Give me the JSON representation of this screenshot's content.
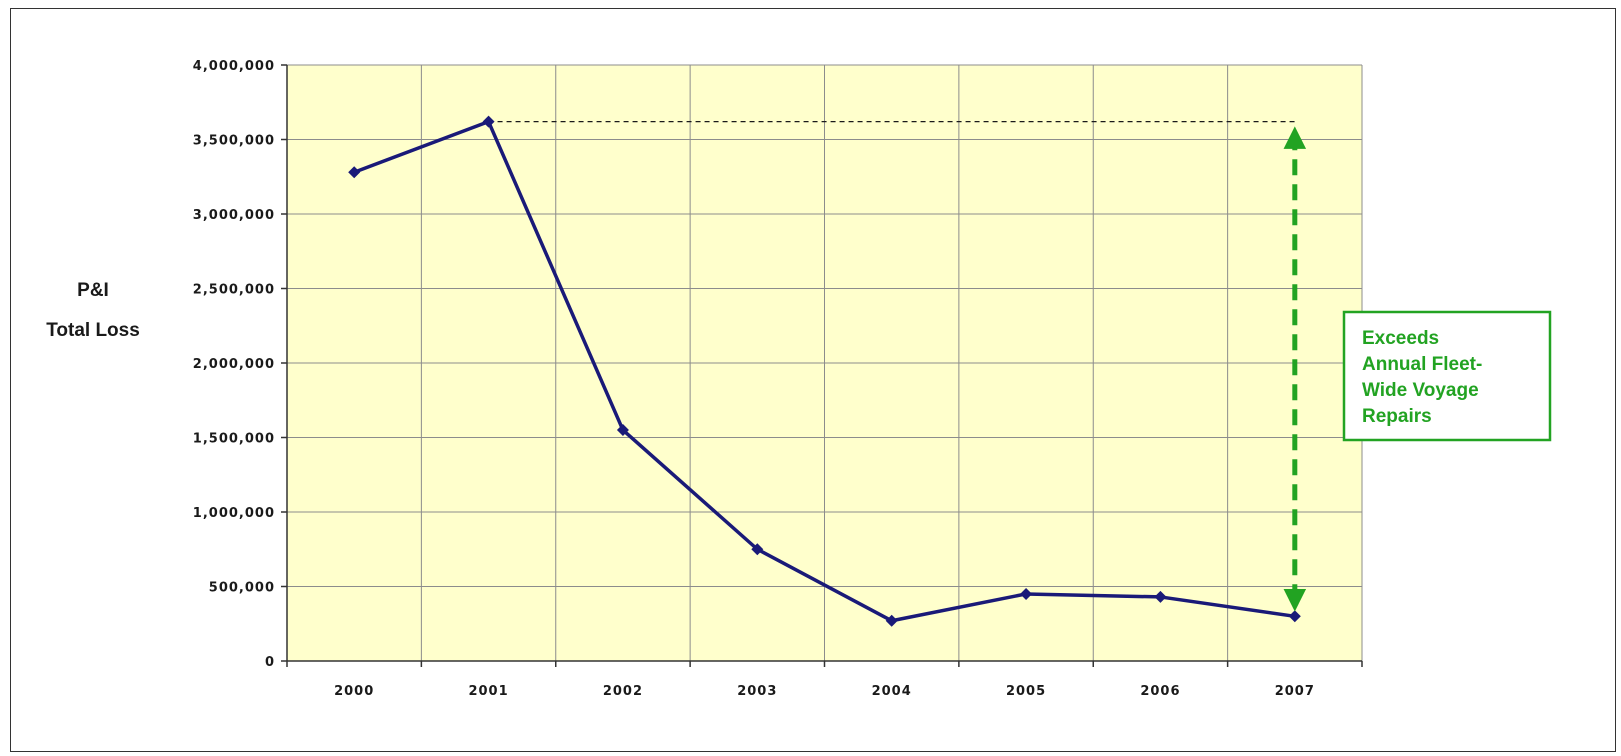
{
  "chart_data": {
    "type": "line",
    "title": "",
    "xlabel": "",
    "ylabel_lines": [
      "P&I",
      "Total Loss"
    ],
    "categories": [
      "2000",
      "2001",
      "2002",
      "2003",
      "2004",
      "2005",
      "2006",
      "2007"
    ],
    "series": [
      {
        "values": [
          3280000,
          3620000,
          1550000,
          750000,
          270000,
          450000,
          430000,
          300000
        ],
        "color": "#1a1a78"
      }
    ],
    "ylim": [
      0,
      4000000
    ],
    "ytick_labels": [
      "0",
      "500,000",
      "1,000,000",
      "1,500,000",
      "2,000,000",
      "2,500,000",
      "3,000,000",
      "3,500,000",
      "4,000,000"
    ],
    "ytick_values": [
      0,
      500000,
      1000000,
      1500000,
      2000000,
      2500000,
      3000000,
      3500000,
      4000000
    ],
    "grid": true,
    "plot_background": "#ffffcc",
    "gridline_color": "#8c8c8c",
    "reference_line": {
      "value": 3620000,
      "from_category": "2001",
      "to_category": "2007",
      "color": "#1a1a1a",
      "style": "dashed"
    },
    "range_arrow": {
      "category": "2007",
      "from_value": 300000,
      "to_value": 3620000,
      "color": "#22a322",
      "style": "dashed"
    },
    "annotation": {
      "lines": [
        "Exceeds",
        "Annual Fleet-",
        "Wide Voyage",
        "Repairs"
      ],
      "color": "#22a322",
      "placement": "right"
    }
  }
}
